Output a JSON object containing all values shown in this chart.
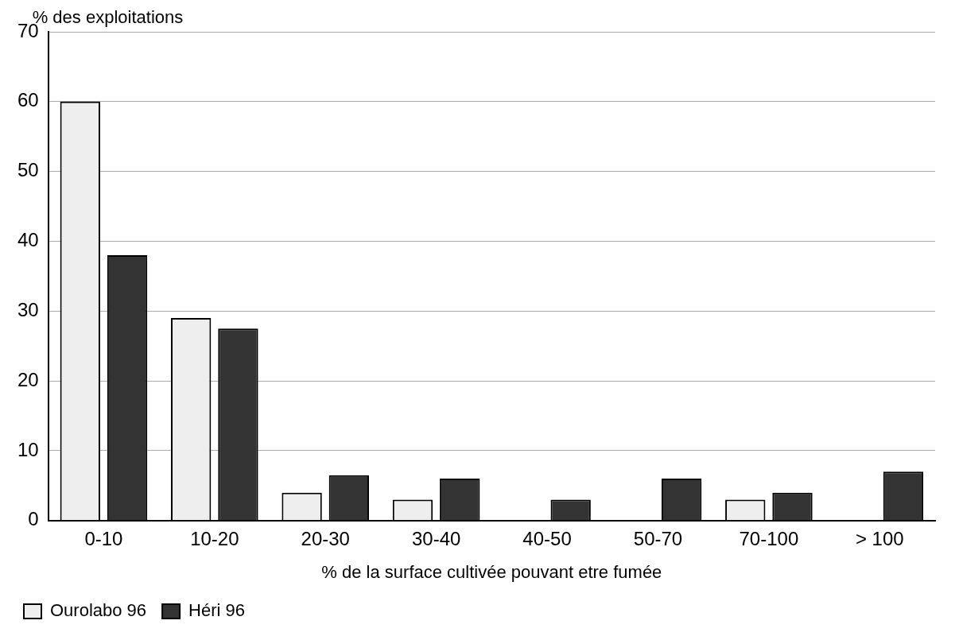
{
  "chart_data": {
    "type": "bar",
    "ylabel": "% des exploitations",
    "xlabel": "% de la surface cultivée pouvant etre fumée",
    "categories": [
      "0-10",
      "10-20",
      "20-30",
      "30-40",
      "40-50",
      "50-70",
      "70-100",
      "> 100"
    ],
    "series": [
      {
        "name": "Ourolabo 96",
        "color": "#eeeeee",
        "values": [
          60,
          29,
          4,
          3,
          0,
          0,
          3,
          0
        ]
      },
      {
        "name": "Héri 96",
        "color": "#333333",
        "values": [
          38,
          27.5,
          6.5,
          6,
          3,
          6,
          4,
          7
        ]
      }
    ],
    "ylim": [
      0,
      70
    ],
    "yticks": [
      0,
      10,
      20,
      30,
      40,
      50,
      60,
      70
    ],
    "grid": "y",
    "legend": "bottom left"
  }
}
